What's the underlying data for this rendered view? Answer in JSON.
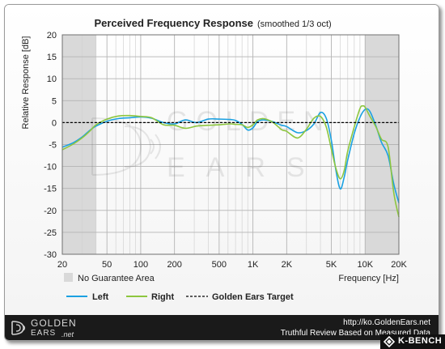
{
  "chart_data": {
    "type": "line",
    "title": "Perceived Frequency Response",
    "subtitle": "(smoothed 1/3 oct)",
    "xlabel": "Frequency [Hz]",
    "ylabel": "Relative Response [dB]",
    "xscale": "log",
    "xlim": [
      20,
      20000
    ],
    "ylim": [
      -30,
      20
    ],
    "grid": true,
    "x_ticks": [
      20,
      50,
      100,
      200,
      500,
      1000,
      2000,
      5000,
      10000,
      20000
    ],
    "x_tick_labels": [
      "20",
      "50",
      "100",
      "200",
      "500",
      "1K",
      "2K",
      "5K",
      "10K",
      "20K"
    ],
    "y_ticks": [
      20,
      15,
      10,
      5,
      0,
      -5,
      -10,
      -15,
      -20,
      -25,
      -30
    ],
    "y_tick_labels": [
      "20",
      "15",
      "10",
      "5",
      "0",
      "-5",
      "-10",
      "-15",
      "-20",
      "-25",
      "-30"
    ],
    "no_guarantee": {
      "label": "No Guarantee Area",
      "ranges": [
        [
          20,
          40
        ],
        [
          10000,
          20000
        ]
      ],
      "color": "#d9d9d9"
    },
    "series": [
      {
        "name": "Left",
        "color": "#1ba1e2",
        "points": [
          [
            20,
            -5.6
          ],
          [
            25,
            -4.6
          ],
          [
            30,
            -3.3
          ],
          [
            35,
            -1.8
          ],
          [
            40,
            -0.8
          ],
          [
            50,
            0.3
          ],
          [
            63,
            0.9
          ],
          [
            80,
            1.1
          ],
          [
            100,
            1.3
          ],
          [
            125,
            1.0
          ],
          [
            160,
            0
          ],
          [
            200,
            -0.3
          ],
          [
            250,
            0.6
          ],
          [
            315,
            0
          ],
          [
            400,
            0.8
          ],
          [
            500,
            0.8
          ],
          [
            630,
            0.7
          ],
          [
            700,
            0.5
          ],
          [
            800,
            -0.4
          ],
          [
            900,
            -1.7
          ],
          [
            1000,
            -1.2
          ],
          [
            1100,
            0.2
          ],
          [
            1250,
            0.6
          ],
          [
            1500,
            0.2
          ],
          [
            1800,
            -0.6
          ],
          [
            2000,
            -0.9
          ],
          [
            2500,
            -2.3
          ],
          [
            3000,
            -1.8
          ],
          [
            3500,
            -0.3
          ],
          [
            4000,
            2.3
          ],
          [
            4500,
            1.0
          ],
          [
            5000,
            -4.0
          ],
          [
            5500,
            -11.0
          ],
          [
            6000,
            -15.1
          ],
          [
            6500,
            -12.5
          ],
          [
            7000,
            -8.5
          ],
          [
            8000,
            -2.5
          ],
          [
            9000,
            1.2
          ],
          [
            10000,
            3.0
          ],
          [
            11000,
            2.6
          ],
          [
            12500,
            -0.8
          ],
          [
            14000,
            -4.5
          ],
          [
            16000,
            -7.5
          ],
          [
            18000,
            -14.0
          ],
          [
            20000,
            -18.3
          ]
        ]
      },
      {
        "name": "Right",
        "color": "#8dc63f",
        "points": [
          [
            20,
            -6.2
          ],
          [
            25,
            -4.9
          ],
          [
            30,
            -3.5
          ],
          [
            35,
            -2.0
          ],
          [
            40,
            -0.5
          ],
          [
            50,
            0.8
          ],
          [
            63,
            1.5
          ],
          [
            80,
            1.6
          ],
          [
            100,
            1.4
          ],
          [
            125,
            1.1
          ],
          [
            160,
            -0.5
          ],
          [
            200,
            -0.6
          ],
          [
            250,
            -1.3
          ],
          [
            315,
            -0.8
          ],
          [
            400,
            -0.6
          ],
          [
            500,
            -0.5
          ],
          [
            630,
            -0.3
          ],
          [
            700,
            -0.4
          ],
          [
            800,
            -0.5
          ],
          [
            900,
            -1.1
          ],
          [
            1000,
            -0.5
          ],
          [
            1100,
            0.6
          ],
          [
            1250,
            0.9
          ],
          [
            1500,
            0.1
          ],
          [
            1800,
            -1.6
          ],
          [
            2000,
            -2.0
          ],
          [
            2500,
            -3.5
          ],
          [
            3000,
            -1.5
          ],
          [
            3500,
            1.0
          ],
          [
            4000,
            1.4
          ],
          [
            4500,
            -1.0
          ],
          [
            5000,
            -6.0
          ],
          [
            5500,
            -10.5
          ],
          [
            6000,
            -12.8
          ],
          [
            6500,
            -11.0
          ],
          [
            7000,
            -6.5
          ],
          [
            8000,
            -1.0
          ],
          [
            9000,
            3.2
          ],
          [
            9500,
            3.8
          ],
          [
            10000,
            3.5
          ],
          [
            11000,
            1.5
          ],
          [
            12500,
            -1.0
          ],
          [
            14000,
            -3.8
          ],
          [
            16000,
            -5.5
          ],
          [
            18000,
            -16.0
          ],
          [
            20000,
            -21.5
          ]
        ]
      },
      {
        "name": "Golden Ears Target",
        "color": "#000000",
        "dashed": true,
        "points": [
          [
            20,
            0
          ],
          [
            20000,
            0
          ]
        ]
      }
    ]
  },
  "footer": {
    "logo_name_line1": "GOLDEN",
    "logo_name_line2": "EARS",
    "logo_tld": ".net",
    "url": "http://ko.GoldenEars.net",
    "tagline": "Truthful Review Based on Measured Data"
  },
  "kbench": {
    "label": "K-BENCH"
  }
}
